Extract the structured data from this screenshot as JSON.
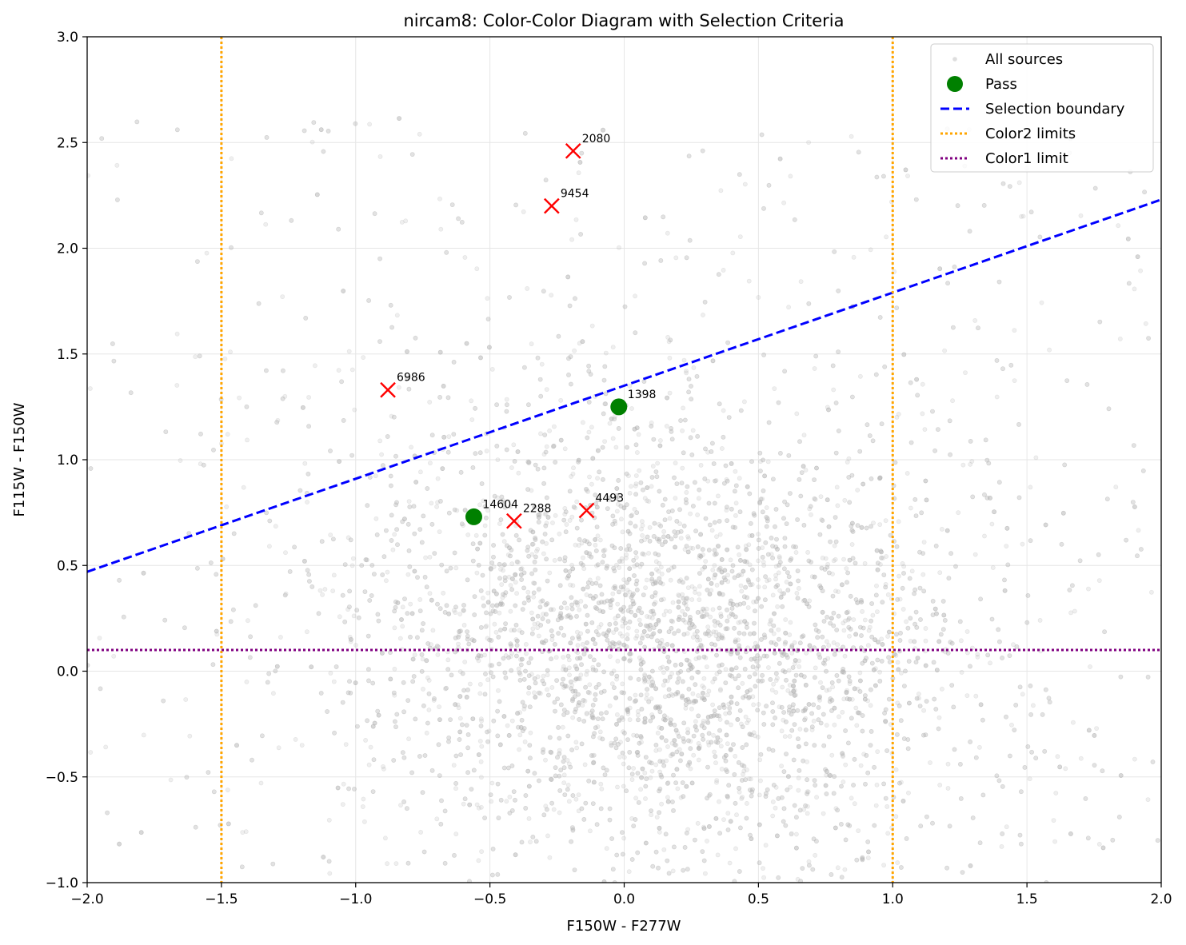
{
  "chart_data": {
    "type": "scatter",
    "title": "nircam8: Color-Color Diagram with Selection Criteria",
    "xlabel": "F150W - F277W",
    "ylabel": "F115W - F150W",
    "xlim": [
      -2.0,
      2.0
    ],
    "ylim": [
      -1.0,
      3.0
    ],
    "xticks": [
      -2.0,
      -1.5,
      -1.0,
      -0.5,
      0.0,
      0.5,
      1.0,
      1.5,
      2.0
    ],
    "xtick_labels": [
      "−2.0",
      "−1.5",
      "−1.0",
      "−0.5",
      "0.0",
      "0.5",
      "1.0",
      "1.5",
      "2.0"
    ],
    "yticks": [
      -1.0,
      -0.5,
      0.0,
      0.5,
      1.0,
      1.5,
      2.0,
      2.5,
      3.0
    ],
    "ytick_labels": [
      "−1.0",
      "−0.5",
      "0.0",
      "0.5",
      "1.0",
      "1.5",
      "2.0",
      "2.5",
      "3.0"
    ],
    "grid": true,
    "legend_position": "top-right",
    "legend": [
      {
        "label": "All sources",
        "marker": "dot",
        "color": "#bdbdbd"
      },
      {
        "label": "Pass",
        "marker": "circle",
        "color": "#008000"
      },
      {
        "label": "Selection boundary",
        "marker": "dashed-line",
        "color": "#0000ff"
      },
      {
        "label": "Color2 limits",
        "marker": "dotted-line",
        "color": "#ffa500"
      },
      {
        "label": "Color1 limit",
        "marker": "dotted-line",
        "color": "#800080"
      }
    ],
    "background_sources": {
      "name": "All sources",
      "color": "#b4b4b4",
      "approx_count": 6000,
      "center": [
        0.15,
        0.15
      ],
      "spread": [
        0.55,
        0.5
      ]
    },
    "selection_boundary": {
      "name": "Selection boundary",
      "style": "dashed",
      "color": "#0000ff",
      "points": [
        [
          -2.0,
          0.47
        ],
        [
          2.0,
          2.23
        ]
      ]
    },
    "color2_limits": {
      "name": "Color2 limits",
      "style": "dotted",
      "color": "#ffa500",
      "x": [
        -1.5,
        1.0
      ]
    },
    "color1_limit": {
      "name": "Color1 limit",
      "style": "dotted",
      "color": "#800080",
      "y": 0.1
    },
    "pass": {
      "name": "Pass",
      "color": "#008000",
      "points": [
        {
          "id": "1398",
          "x": -0.02,
          "y": 1.25
        },
        {
          "id": "14604",
          "x": -0.56,
          "y": 0.73
        }
      ]
    },
    "rejected": {
      "color": "#ff0000",
      "points": [
        {
          "id": "2080",
          "x": -0.19,
          "y": 2.46
        },
        {
          "id": "9454",
          "x": -0.27,
          "y": 2.2
        },
        {
          "id": "6986",
          "x": -0.88,
          "y": 1.33
        },
        {
          "id": "2288",
          "x": -0.41,
          "y": 0.71
        },
        {
          "id": "4493",
          "x": -0.14,
          "y": 0.76
        }
      ]
    }
  }
}
